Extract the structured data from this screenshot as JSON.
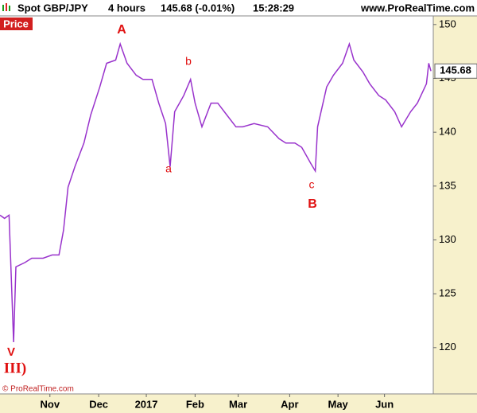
{
  "header": {
    "fields": [
      "Spot GBP/JPY",
      "4 hours",
      "145.68 (-0.01%)",
      "15:28:29"
    ],
    "site": "www.ProRealTime.com"
  },
  "chart_data": {
    "type": "line",
    "panel_label": "Price",
    "copyright": "© ProRealTime.com",
    "x": [
      0,
      2,
      4,
      6,
      7,
      11,
      14,
      19,
      23,
      26,
      28,
      30,
      33,
      37,
      40,
      44,
      47,
      51,
      53,
      56,
      60,
      63,
      67,
      70,
      73,
      75,
      77,
      81,
      84,
      86,
      89,
      93,
      96,
      100,
      104,
      107,
      112,
      118,
      123,
      126,
      130,
      133,
      137,
      139,
      140,
      144,
      147,
      151,
      154,
      156,
      160,
      163,
      167,
      170,
      174,
      177,
      181,
      184,
      188,
      189,
      190
    ],
    "values": [
      132.3,
      132,
      132.3,
      120.5,
      127.5,
      127.9,
      128.3,
      128.3,
      128.6,
      128.6,
      130.9,
      134.9,
      136.8,
      139,
      141.6,
      144.2,
      146.4,
      146.7,
      148.2,
      146.4,
      145.3,
      144.9,
      144.9,
      142.7,
      140.8,
      136.8,
      141.9,
      143.4,
      144.9,
      142.7,
      140.5,
      142.7,
      142.7,
      141.6,
      140.5,
      140.5,
      140.8,
      140.5,
      139.4,
      139,
      139,
      138.6,
      137.1,
      136.4,
      140.5,
      144.2,
      145.3,
      146.4,
      148.2,
      146.7,
      145.6,
      144.5,
      143.4,
      143,
      141.9,
      140.5,
      141.9,
      142.7,
      144.5,
      146.4,
      145.68
    ],
    "color": "#9933cc",
    "xlim": [
      0,
      191
    ],
    "xticks": [
      {
        "value": 22,
        "label": "Nov"
      },
      {
        "value": 43.5,
        "label": "Dec"
      },
      {
        "value": 64.5,
        "label": "2017"
      },
      {
        "value": 86,
        "label": "Feb"
      },
      {
        "value": 105,
        "label": "Mar"
      },
      {
        "value": 127.7,
        "label": "Apr"
      },
      {
        "value": 149,
        "label": "May"
      },
      {
        "value": 169.5,
        "label": "Jun"
      }
    ],
    "ylim": [
      115.7,
      150.8
    ],
    "yticks": [
      120,
      125,
      130,
      135,
      140,
      145,
      150
    ],
    "annotations": [
      "A",
      "a",
      "b",
      "c",
      "B",
      "V",
      "III)"
    ]
  }
}
